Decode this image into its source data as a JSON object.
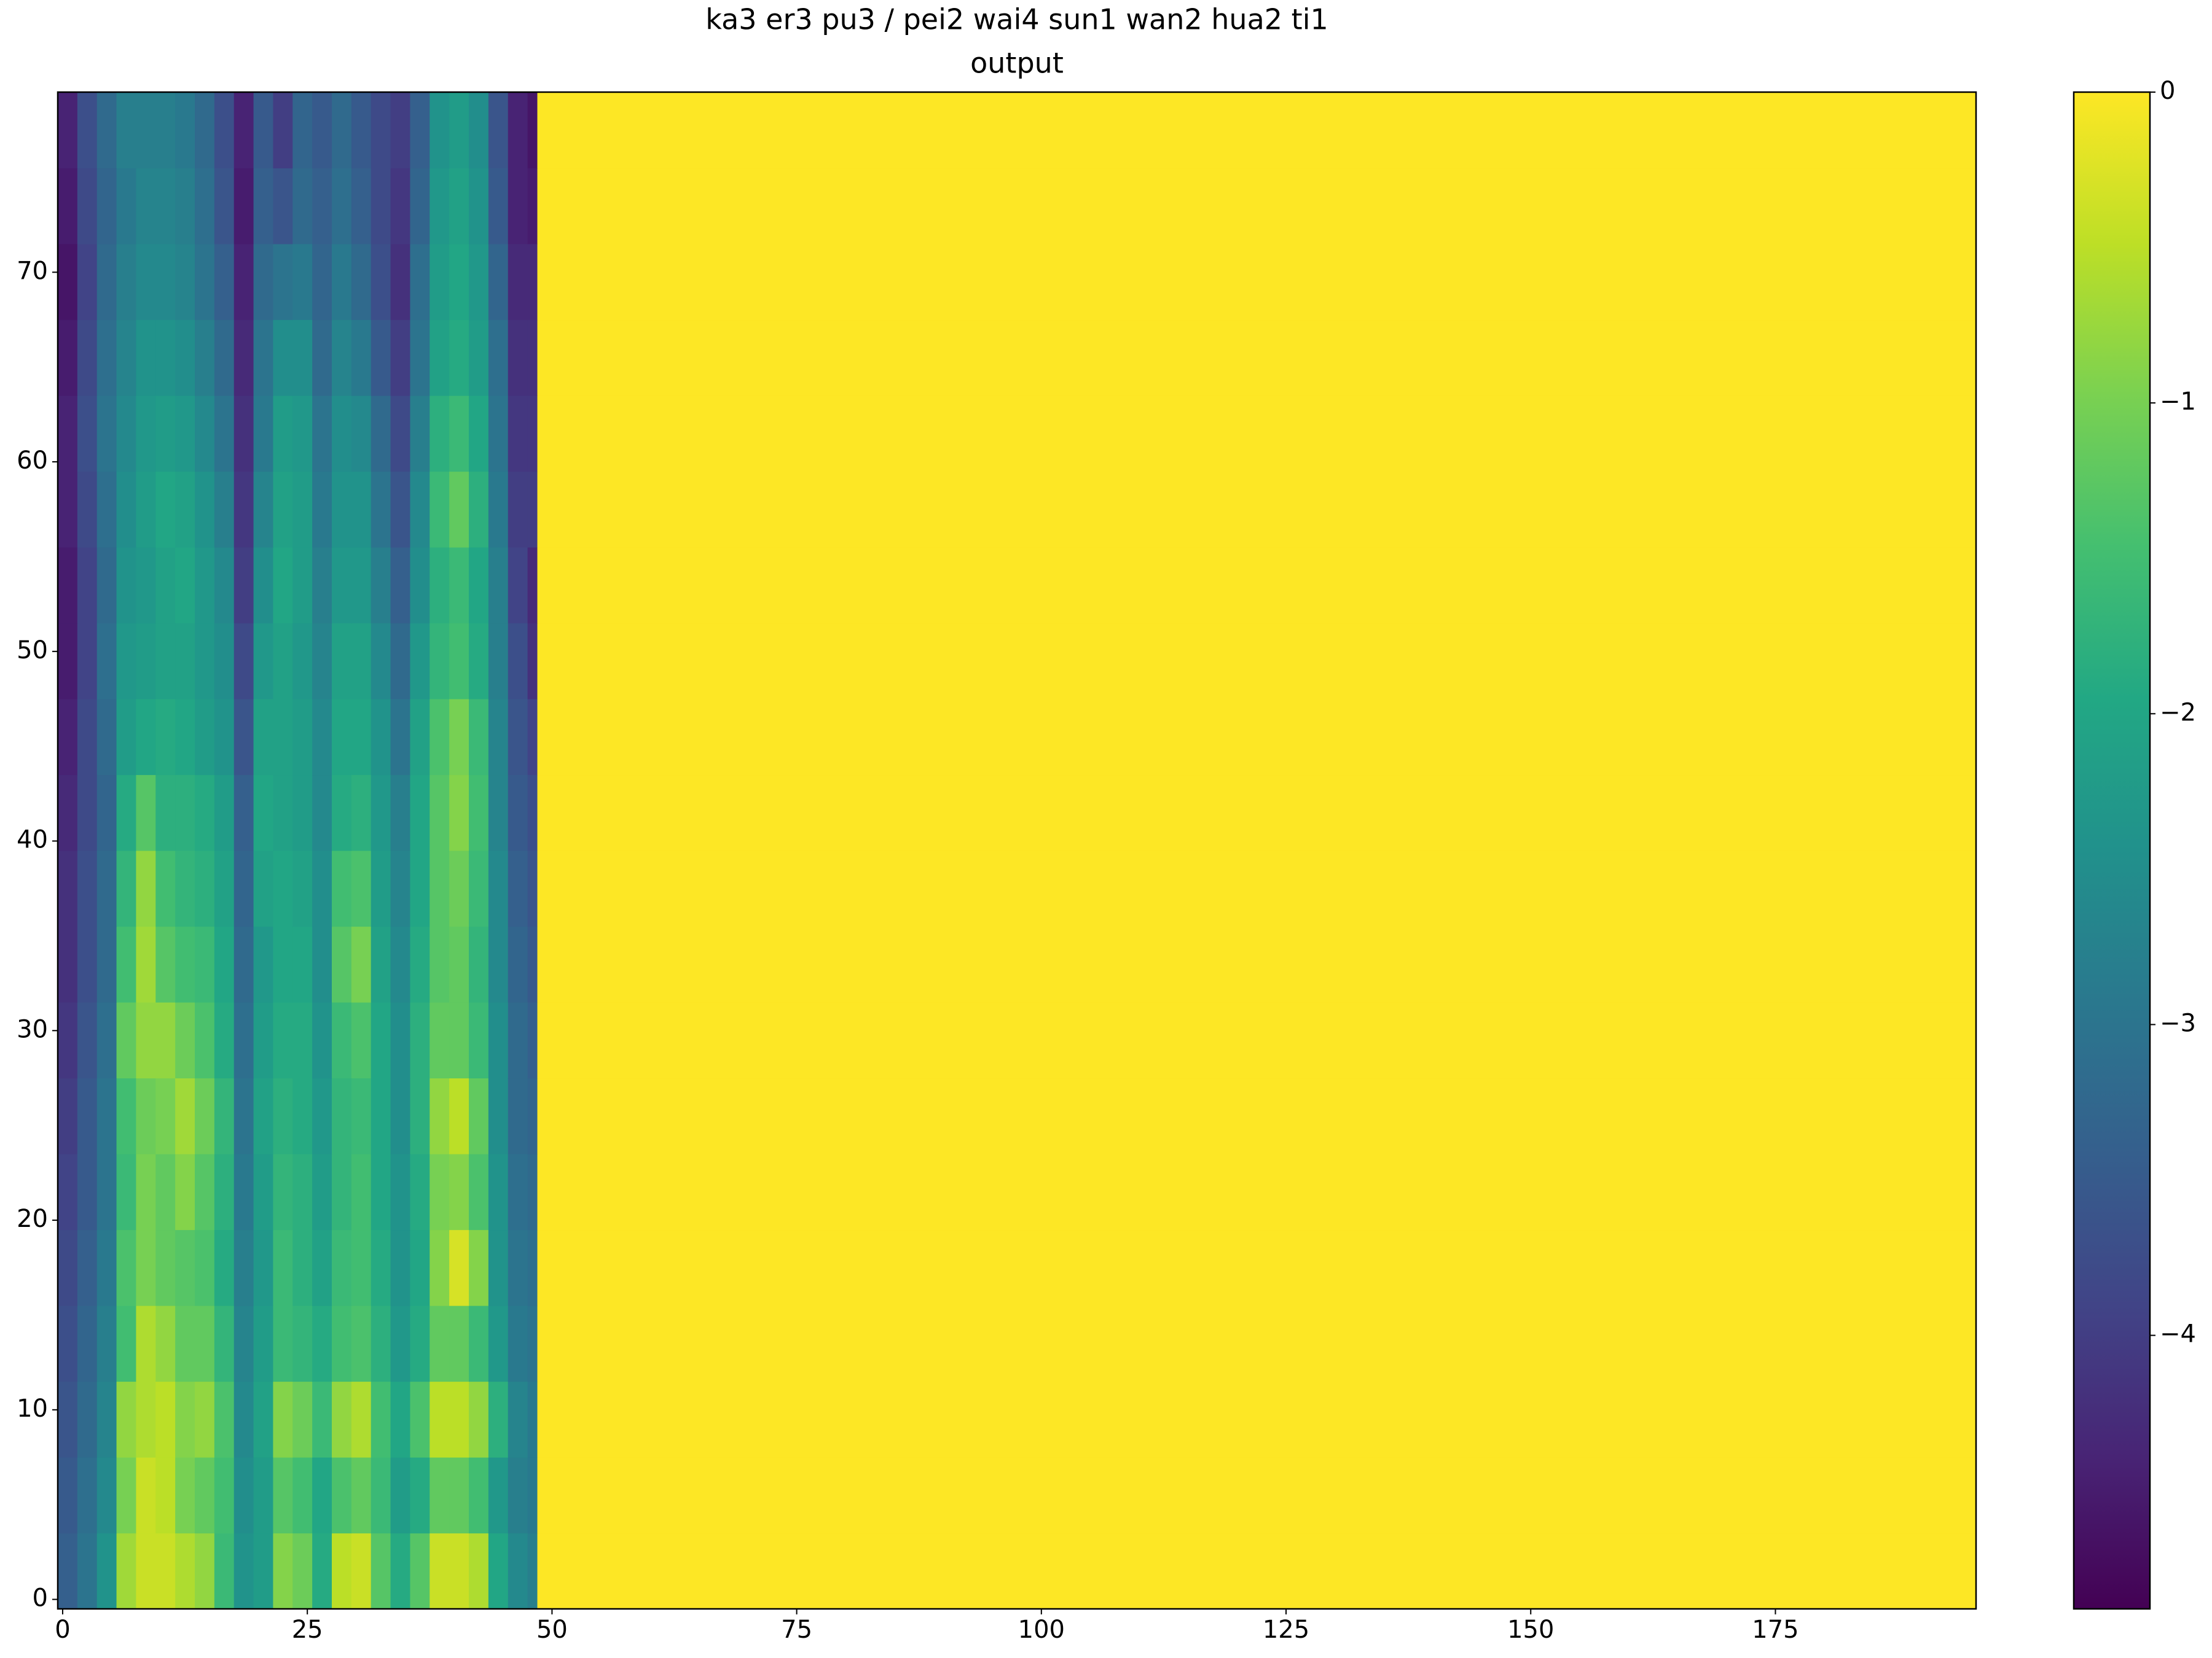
{
  "chart_data": {
    "type": "heatmap",
    "title": "ka3 er3 pu3 / pei2 wai4 sun1 wan2 hua2 ti1",
    "subtitle": "output",
    "colormap": "viridis",
    "x_bins": [
      -0.5,
      1.5,
      3.5,
      5.5,
      7.5,
      9.5,
      11.5,
      13.5,
      15.5,
      17.5,
      19.5,
      21.5,
      23.5,
      25.5,
      27.5,
      29.5,
      31.5,
      33.5,
      35.5,
      37.5,
      39.5,
      41.5,
      43.5,
      45.5,
      47.5,
      48.5,
      195.5
    ],
    "y_bins": [
      -0.5,
      3.5,
      7.5,
      11.5,
      15.5,
      19.5,
      23.5,
      27.5,
      31.5,
      35.5,
      39.5,
      43.5,
      47.5,
      51.5,
      55.5,
      59.5,
      63.5,
      67.5,
      71.5,
      75.5,
      79.5
    ],
    "z": [
      [
        -3.4,
        -3.0,
        -2.4,
        -0.7,
        -0.4,
        -0.4,
        -0.6,
        -0.8,
        -1.6,
        -2.4,
        -2.2,
        -0.9,
        -1.1,
        -1.9,
        -0.5,
        -0.4,
        -1.3,
        -1.9,
        -1.3,
        -0.4,
        -0.4,
        -0.6,
        -2.0,
        -2.6,
        -2.8,
        0
      ],
      [
        -3.5,
        -3.1,
        -2.6,
        -1.0,
        -0.4,
        -0.5,
        -1.0,
        -1.2,
        -1.5,
        -2.5,
        -2.2,
        -1.3,
        -1.5,
        -2.0,
        -1.4,
        -1.2,
        -1.6,
        -2.2,
        -1.9,
        -1.2,
        -1.2,
        -1.5,
        -2.3,
        -2.8,
        -2.9,
        0
      ],
      [
        -3.6,
        -3.2,
        -2.7,
        -0.8,
        -0.6,
        -0.5,
        -0.9,
        -0.8,
        -1.4,
        -2.6,
        -2.1,
        -0.9,
        -1.1,
        -1.6,
        -0.8,
        -0.6,
        -1.5,
        -2.0,
        -1.4,
        -0.5,
        -0.5,
        -0.8,
        -1.8,
        -2.7,
        -2.9,
        0
      ],
      [
        -3.7,
        -3.3,
        -2.8,
        -1.5,
        -0.6,
        -0.8,
        -1.2,
        -1.2,
        -1.7,
        -2.7,
        -2.2,
        -1.6,
        -1.7,
        -1.9,
        -1.5,
        -1.4,
        -1.8,
        -2.3,
        -1.9,
        -1.2,
        -1.2,
        -1.6,
        -2.3,
        -2.9,
        -3.0,
        0
      ],
      [
        -3.8,
        -3.4,
        -2.9,
        -1.4,
        -1.0,
        -1.2,
        -1.3,
        -1.4,
        -1.9,
        -2.8,
        -2.3,
        -1.6,
        -1.8,
        -2.1,
        -1.6,
        -1.5,
        -1.9,
        -2.4,
        -2.0,
        -0.9,
        -0.3,
        -0.9,
        -2.4,
        -3.0,
        -3.1,
        0
      ],
      [
        -3.9,
        -3.5,
        -3.0,
        -1.6,
        -1.0,
        -1.2,
        -0.9,
        -1.3,
        -1.8,
        -2.9,
        -2.2,
        -1.7,
        -1.8,
        -2.2,
        -1.7,
        -1.5,
        -2.0,
        -2.4,
        -1.9,
        -1.0,
        -0.9,
        -1.4,
        -2.4,
        -3.1,
        -3.2,
        0
      ],
      [
        -4.0,
        -3.5,
        -3.0,
        -1.5,
        -1.1,
        -1.0,
        -0.7,
        -1.1,
        -1.7,
        -3.0,
        -2.1,
        -1.8,
        -1.9,
        -2.3,
        -1.7,
        -1.6,
        -2.0,
        -2.5,
        -1.8,
        -0.8,
        -0.5,
        -1.2,
        -2.5,
        -3.2,
        -3.3,
        0
      ],
      [
        -4.1,
        -3.6,
        -3.1,
        -1.2,
        -0.8,
        -0.8,
        -1.1,
        -1.4,
        -1.9,
        -3.1,
        -2.2,
        -1.9,
        -1.9,
        -2.4,
        -1.6,
        -1.4,
        -2.0,
        -2.5,
        -1.8,
        -1.2,
        -1.2,
        -1.6,
        -2.5,
        -3.2,
        -3.4,
        0
      ],
      [
        -4.2,
        -3.7,
        -3.2,
        -1.5,
        -0.7,
        -1.3,
        -1.5,
        -1.6,
        -2.0,
        -3.2,
        -2.3,
        -2.0,
        -2.0,
        -2.5,
        -1.3,
        -1.0,
        -2.1,
        -2.6,
        -1.9,
        -1.3,
        -1.2,
        -1.7,
        -2.6,
        -3.3,
        -3.5,
        0
      ],
      [
        -4.2,
        -3.7,
        -3.2,
        -1.7,
        -0.8,
        -1.5,
        -1.7,
        -1.8,
        -2.1,
        -3.3,
        -2.1,
        -2.0,
        -2.1,
        -2.5,
        -1.5,
        -1.4,
        -2.2,
        -2.7,
        -2.0,
        -1.3,
        -1.1,
        -1.6,
        -2.6,
        -3.4,
        -3.6,
        0
      ],
      [
        -4.3,
        -3.8,
        -3.3,
        -1.9,
        -1.3,
        -1.8,
        -1.8,
        -1.9,
        -2.2,
        -3.4,
        -2.0,
        -2.1,
        -2.2,
        -2.6,
        -1.9,
        -1.8,
        -2.3,
        -2.8,
        -2.0,
        -1.3,
        -0.9,
        -1.5,
        -2.7,
        -3.5,
        -3.7,
        0
      ],
      [
        -4.4,
        -3.8,
        -3.2,
        -2.2,
        -2.0,
        -1.9,
        -2.0,
        -2.2,
        -2.4,
        -3.6,
        -2.1,
        -2.1,
        -2.2,
        -2.6,
        -2.0,
        -2.0,
        -2.4,
        -3.0,
        -2.1,
        -1.4,
        -1.0,
        -1.6,
        -2.7,
        -3.6,
        -3.9,
        0
      ],
      [
        -4.5,
        -3.9,
        -3.1,
        -2.3,
        -2.2,
        -2.1,
        -2.1,
        -2.3,
        -2.5,
        -3.8,
        -2.3,
        -2.1,
        -2.3,
        -2.7,
        -2.1,
        -2.1,
        -2.6,
        -3.2,
        -2.3,
        -1.7,
        -1.5,
        -1.9,
        -2.8,
        -3.7,
        -4.2,
        0
      ],
      [
        -4.5,
        -3.9,
        -3.2,
        -2.4,
        -2.3,
        -2.1,
        -2.0,
        -2.3,
        -2.6,
        -4.0,
        -2.5,
        -2.0,
        -2.2,
        -2.8,
        -2.3,
        -2.3,
        -2.8,
        -3.4,
        -2.5,
        -1.8,
        -1.6,
        -2.0,
        -2.8,
        -3.9,
        -4.3,
        0
      ],
      [
        -4.4,
        -3.8,
        -3.1,
        -2.5,
        -2.2,
        -2.0,
        -2.1,
        -2.4,
        -2.8,
        -4.1,
        -2.7,
        -2.1,
        -2.2,
        -2.9,
        -2.4,
        -2.4,
        -3.0,
        -3.6,
        -2.6,
        -1.6,
        -1.2,
        -1.8,
        -2.9,
        -4.0,
        -4.0,
        0
      ],
      [
        -4.4,
        -3.7,
        -3.0,
        -2.6,
        -2.3,
        -2.2,
        -2.3,
        -2.6,
        -3.0,
        -4.2,
        -2.9,
        -2.2,
        -2.3,
        -3.0,
        -2.5,
        -2.6,
        -3.2,
        -3.8,
        -2.8,
        -1.8,
        -1.6,
        -2.0,
        -3.0,
        -4.1,
        -4.1,
        0
      ],
      [
        -4.5,
        -3.8,
        -3.1,
        -2.7,
        -2.4,
        -2.4,
        -2.5,
        -2.8,
        -3.2,
        -4.3,
        -3.0,
        -2.5,
        -2.5,
        -3.2,
        -2.7,
        -2.9,
        -3.5,
        -4.0,
        -3.0,
        -2.1,
        -1.9,
        -2.2,
        -3.1,
        -4.2,
        -4.2,
        0
      ],
      [
        -4.6,
        -3.9,
        -3.2,
        -2.8,
        -2.6,
        -2.6,
        -2.7,
        -3.0,
        -3.4,
        -4.4,
        -3.2,
        -3.0,
        -2.9,
        -3.3,
        -2.9,
        -3.2,
        -3.7,
        -4.2,
        -3.1,
        -2.2,
        -2.0,
        -2.3,
        -3.3,
        -4.3,
        -4.3,
        0
      ],
      [
        -4.5,
        -3.8,
        -3.3,
        -2.9,
        -2.7,
        -2.7,
        -2.8,
        -3.1,
        -3.6,
        -4.5,
        -3.4,
        -3.6,
        -3.2,
        -3.4,
        -3.1,
        -3.4,
        -3.8,
        -4.1,
        -3.3,
        -2.3,
        -2.1,
        -2.4,
        -3.5,
        -4.4,
        -4.5,
        0
      ],
      [
        -4.4,
        -3.7,
        -3.2,
        -2.8,
        -2.8,
        -2.8,
        -2.9,
        -3.2,
        -3.7,
        -4.4,
        -3.5,
        -4.0,
        -3.3,
        -3.5,
        -3.2,
        -3.5,
        -3.8,
        -4.0,
        -3.4,
        -2.4,
        -2.2,
        -2.5,
        -3.6,
        -4.4,
        -4.6,
        0
      ]
    ],
    "xlim": [
      -0.5,
      195.5
    ],
    "ylim": [
      -0.5,
      79.5
    ],
    "xticks": [
      0,
      25,
      50,
      75,
      100,
      125,
      150,
      175
    ],
    "yticks": [
      0,
      10,
      20,
      30,
      40,
      50,
      60,
      70
    ],
    "clim": [
      -4.88,
      0
    ],
    "cticks": [
      0,
      {
        "value": -1,
        "label": "−1"
      },
      {
        "value": -2,
        "label": "−2"
      },
      {
        "value": -3,
        "label": "−3"
      },
      {
        "value": -4,
        "label": "−4"
      }
    ]
  }
}
